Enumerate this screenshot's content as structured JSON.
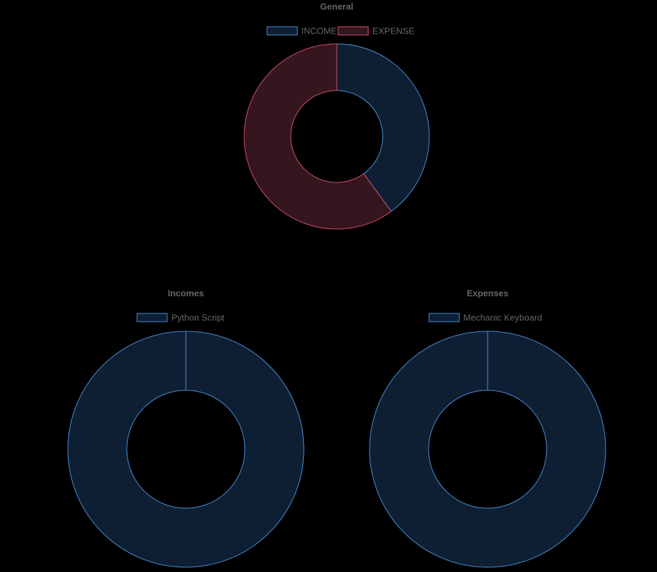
{
  "chart_data": [
    {
      "id": "general",
      "type": "pie",
      "title": "General",
      "categories": [
        "INCOME",
        "EXPENSE"
      ],
      "values": [
        40,
        60
      ],
      "colors": [
        {
          "fill": "#0f1f33",
          "stroke": "#4a90d9"
        },
        {
          "fill": "#36161e",
          "stroke": "#d9506c"
        }
      ],
      "legend_position": "top"
    },
    {
      "id": "incomes",
      "type": "pie",
      "title": "Incomes",
      "categories": [
        "Python Script"
      ],
      "values": [
        100
      ],
      "colors": [
        {
          "fill": "#0f1f33",
          "stroke": "#4a90d9"
        }
      ],
      "legend_position": "top"
    },
    {
      "id": "expenses",
      "type": "pie",
      "title": "Expenses",
      "categories": [
        "Mechanic Keyboard"
      ],
      "values": [
        100
      ],
      "colors": [
        {
          "fill": "#0f1f33",
          "stroke": "#4a90d9"
        }
      ],
      "legend_position": "top"
    }
  ]
}
